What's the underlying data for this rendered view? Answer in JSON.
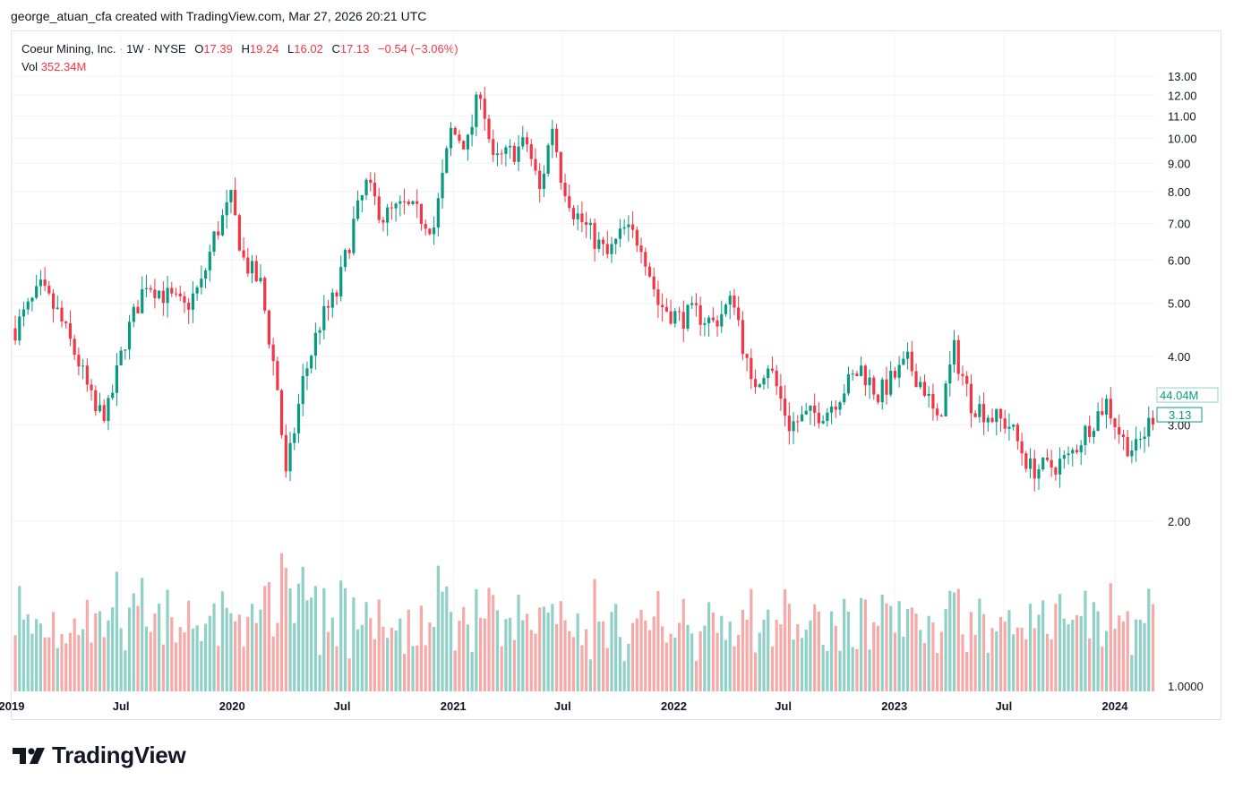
{
  "attribution": "george_atuan_cfa created with TradingView.com, Mar 27, 2026 20:21 UTC",
  "legend": {
    "symbol": "Coeur Mining, Inc.",
    "interval": "1W",
    "exchange": "NYSE",
    "open_label": "O",
    "open": "17.39",
    "high_label": "H",
    "high": "19.24",
    "low_label": "L",
    "low": "16.02",
    "close_label": "C",
    "close": "17.13",
    "change": "−0.54 (−3.06%)",
    "vol_label": "Vol",
    "vol": "352.34M"
  },
  "logo_text": "TradingView",
  "colors": {
    "up": "#089981",
    "down": "#f23645",
    "vol_up": "#8fd0c7",
    "vol_down": "#f7a9a7",
    "grid": "#f0f3fa",
    "text": "#131722"
  },
  "chart_data": {
    "type": "candlestick",
    "scale": "log",
    "y_ticks": [
      "13.00",
      "12.00",
      "11.00",
      "10.00",
      "9.00",
      "8.00",
      "7.00",
      "6.00",
      "5.00",
      "4.00",
      "3.00",
      "2.00",
      "1.0000"
    ],
    "x_ticks": [
      "2019",
      "Jul",
      "2020",
      "Jul",
      "2021",
      "Jul",
      "2022",
      "Jul",
      "2023",
      "Jul",
      "2024"
    ],
    "price_label": "3.13",
    "volume_label": "44.04M",
    "anchors": [
      [
        "2019-01-07",
        4.5
      ],
      [
        "2019-02-18",
        5.3
      ],
      [
        "2019-03-18",
        4.8
      ],
      [
        "2019-04-22",
        3.9
      ],
      [
        "2019-05-20",
        3.15
      ],
      [
        "2019-06-10",
        3.2
      ],
      [
        "2019-07-08",
        4.3
      ],
      [
        "2019-08-12",
        5.5
      ],
      [
        "2019-09-09",
        5.2
      ],
      [
        "2019-10-14",
        4.9
      ],
      [
        "2019-11-11",
        5.4
      ],
      [
        "2019-12-02",
        6.6
      ],
      [
        "2019-12-30",
        7.7
      ],
      [
        "2020-01-20",
        6.0
      ],
      [
        "2020-02-17",
        5.4
      ],
      [
        "2020-03-16",
        3.5
      ],
      [
        "2020-03-30",
        2.4
      ],
      [
        "2020-04-27",
        3.6
      ],
      [
        "2020-05-25",
        4.6
      ],
      [
        "2020-06-22",
        5.2
      ],
      [
        "2020-07-20",
        7.0
      ],
      [
        "2020-08-10",
        8.2
      ],
      [
        "2020-09-07",
        7.2
      ],
      [
        "2020-10-12",
        7.5
      ],
      [
        "2020-11-09",
        7.2
      ],
      [
        "2020-11-30",
        6.9
      ],
      [
        "2020-12-28",
        10.3
      ],
      [
        "2021-01-25",
        9.8
      ],
      [
        "2021-02-15",
        12.4
      ],
      [
        "2021-03-08",
        9.0
      ],
      [
        "2021-04-05",
        9.4
      ],
      [
        "2021-05-03",
        9.8
      ],
      [
        "2021-05-24",
        8.0
      ],
      [
        "2021-06-14",
        10.6
      ],
      [
        "2021-06-28",
        8.6
      ],
      [
        "2021-07-19",
        7.4
      ],
      [
        "2021-08-16",
        6.7
      ],
      [
        "2021-09-13",
        6.1
      ],
      [
        "2021-10-11",
        6.8
      ],
      [
        "2021-11-08",
        6.5
      ],
      [
        "2021-12-06",
        5.0
      ],
      [
        "2022-01-10",
        4.7
      ],
      [
        "2022-02-07",
        4.8
      ],
      [
        "2022-03-07",
        4.6
      ],
      [
        "2022-04-11",
        5.1
      ],
      [
        "2022-05-09",
        3.5
      ],
      [
        "2022-06-06",
        3.9
      ],
      [
        "2022-07-11",
        3.0
      ],
      [
        "2022-08-08",
        3.1
      ],
      [
        "2022-09-12",
        3.2
      ],
      [
        "2022-10-10",
        3.5
      ],
      [
        "2022-11-07",
        3.8
      ],
      [
        "2022-12-05",
        3.4
      ],
      [
        "2023-01-23",
        3.9
      ],
      [
        "2023-02-20",
        3.5
      ],
      [
        "2023-03-13",
        3.0
      ],
      [
        "2023-04-10",
        4.1
      ],
      [
        "2023-05-08",
        3.3
      ],
      [
        "2023-06-12",
        3.1
      ],
      [
        "2023-07-10",
        3.0
      ],
      [
        "2023-08-14",
        2.5
      ],
      [
        "2023-09-11",
        2.5
      ],
      [
        "2023-10-16",
        2.6
      ],
      [
        "2023-11-20",
        3.0
      ],
      [
        "2023-12-18",
        3.3
      ],
      [
        "2024-01-15",
        2.8
      ],
      [
        "2024-02-05",
        2.7
      ],
      [
        "2024-03-04",
        3.13
      ]
    ]
  }
}
